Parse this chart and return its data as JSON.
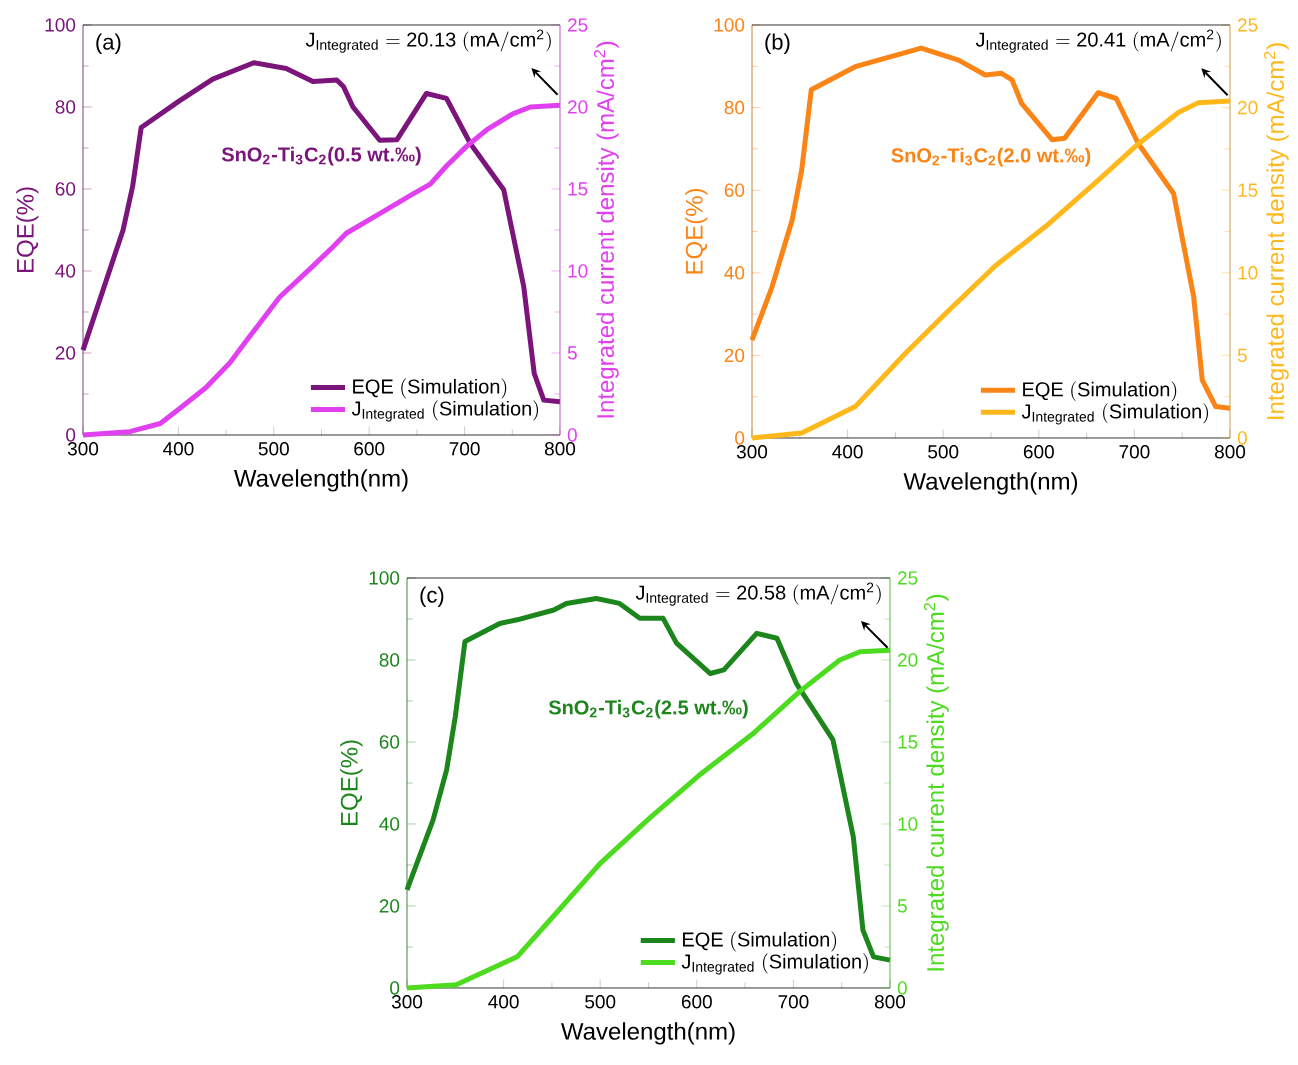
{
  "chart_data": [
    {
      "type": "line",
      "xlabel": "Wavelength(nm)",
      "ylabel": "EQE(%)",
      "y2label": "Integrated current density (mA/cm$^{2}$)",
      "xlim": [
        300,
        800
      ],
      "xticks": [
        300,
        400,
        500,
        600,
        700,
        800
      ],
      "ylim": [
        0,
        100
      ],
      "yticks": [
        0,
        20,
        40,
        60,
        80,
        100
      ],
      "y2lim": [
        0,
        25
      ],
      "y2ticks": [
        0,
        5,
        10,
        15,
        20,
        25
      ],
      "legend": "bottom right",
      "annotations": [
        "(a)",
        "\\mathrm{J_{Integrated}\\ {=}\\ 20.13\\ (mA/cm^{2})}",
        "SnO$_{2}$-Ti$_{3}$C$_{2}$(0.5 wt.‰)"
      ],
      "series": [
        {
          "name": "\\mathrm{EQE\\ (Simulation)}",
          "color": "#7b157b",
          "x": [
            300,
            342,
            352,
            361,
            401,
            436,
            479,
            513,
            541,
            566,
            573,
            583,
            611,
            629,
            660,
            681,
            706,
            741,
            762,
            773,
            783,
            800
          ],
          "values": [
            20.7,
            50,
            60.6,
            75,
            81.5,
            86.8,
            90.8,
            89.4,
            86.2,
            86.6,
            85,
            80,
            71.9,
            72,
            83.3,
            82.1,
            71.1,
            59.8,
            36.2,
            15,
            8.5,
            8.1
          ]
        },
        {
          "name": "\\mathrm{J_{Integrated}\\ (Simulation)}",
          "color": "#e040f0",
          "axis": "y2",
          "x": [
            300,
            349,
            381,
            401,
            429,
            454,
            472,
            506,
            541,
            559,
            576,
            611,
            646,
            664,
            681,
            702,
            723,
            751,
            769,
            800
          ],
          "values": [
            0,
            0.2,
            0.7,
            1.6,
            2.9,
            4.4,
            5.8,
            8.4,
            10.3,
            11.3,
            12.3,
            13.5,
            14.7,
            15.3,
            16.4,
            17.6,
            18.6,
            19.6,
            20.0,
            20.1
          ]
        }
      ]
    },
    {
      "type": "line",
      "xlabel": "Wavelength(nm)",
      "ylabel": "EQE(%)",
      "y2label": "Integrated current density (mA/cm$^{2}$)",
      "xlim": [
        300,
        800
      ],
      "xticks": [
        300,
        400,
        500,
        600,
        700,
        800
      ],
      "ylim": [
        0,
        100
      ],
      "yticks": [
        0,
        20,
        40,
        60,
        80,
        100
      ],
      "y2lim": [
        0,
        25
      ],
      "y2ticks": [
        0,
        5,
        10,
        15,
        20,
        25
      ],
      "legend": "bottom right",
      "annotations": [
        "(b)",
        "\\mathrm{J_{Integrated}\\ {=}\\ 20.41\\ (mA/cm^{2})}",
        "SnO$_{2}$-Ti$_{3}$C$_{2}$(2.0 wt.‰)"
      ],
      "series": [
        {
          "name": "\\mathrm{EQE\\ (Simulation)}",
          "color": "#fb8416",
          "x": [
            300,
            321,
            342,
            352,
            362,
            408,
            477,
            516,
            544,
            561,
            572,
            582,
            614,
            627,
            662,
            681,
            704,
            741,
            762,
            771,
            785,
            800
          ],
          "values": [
            23.7,
            36.6,
            52.8,
            64.9,
            84.3,
            89.9,
            94.4,
            91.5,
            87.9,
            88.3,
            86.7,
            81,
            72.2,
            72.6,
            83.6,
            82.2,
            71.3,
            59.2,
            34.2,
            14,
            7.6,
            7.2
          ]
        },
        {
          "name": "\\mathrm{J_{Integrated}\\ (Simulation)}",
          "color": "#ffb81c",
          "axis": "y2",
          "x": [
            300,
            352,
            408,
            460,
            502,
            554,
            607,
            662,
            704,
            746,
            767,
            800
          ],
          "values": [
            0,
            0.3,
            1.9,
            5.1,
            7.5,
            10.4,
            12.8,
            15.6,
            17.8,
            19.7,
            20.3,
            20.4
          ]
        }
      ]
    },
    {
      "type": "line",
      "xlabel": "Wavelength(nm)",
      "ylabel": "EQE(%)",
      "y2label": "Integrated current density (mA/cm$^{2}$)",
      "xlim": [
        300,
        800
      ],
      "xticks": [
        300,
        400,
        500,
        600,
        700,
        800
      ],
      "ylim": [
        0,
        100
      ],
      "yticks": [
        0,
        20,
        40,
        60,
        80,
        100
      ],
      "y2lim": [
        0,
        25
      ],
      "y2ticks": [
        0,
        5,
        10,
        15,
        20,
        25
      ],
      "legend": "bottom right",
      "annotations": [
        "(c)",
        "\\mathrm{J_{Integrated}\\ {=}\\ 20.58\\ (mA/cm^{2})}",
        "SnO$_{2}$-Ti$_{3}$C$_{2}$(2.5 wt.‰)"
      ],
      "series": [
        {
          "name": "\\mathrm{EQE\\ (Simulation)}",
          "color": "#1c861c",
          "x": [
            300,
            327,
            341,
            350,
            360,
            396,
            414,
            452,
            465,
            496,
            520,
            541,
            565,
            579,
            614,
            628,
            662,
            683,
            703,
            741,
            762,
            772,
            783,
            800
          ],
          "values": [
            23.9,
            41,
            53.2,
            66.2,
            84.5,
            88.9,
            89.8,
            92.2,
            93.8,
            95,
            93.8,
            90.2,
            90.2,
            84.1,
            76.7,
            77.6,
            86.5,
            85.3,
            74.3,
            60.5,
            36.9,
            14.1,
            7.6,
            6.8
          ]
        },
        {
          "name": "\\mathrm{J_{Integrated}\\ (Simulation)}",
          "color": "#4cdb1e",
          "axis": "y2",
          "x": [
            300,
            351,
            414,
            458,
            500,
            552,
            603,
            658,
            707,
            748,
            769,
            800
          ],
          "values": [
            0,
            0.2,
            1.9,
            4.8,
            7.6,
            10.4,
            13,
            15.5,
            18.1,
            20,
            20.5,
            20.6
          ]
        }
      ]
    }
  ]
}
